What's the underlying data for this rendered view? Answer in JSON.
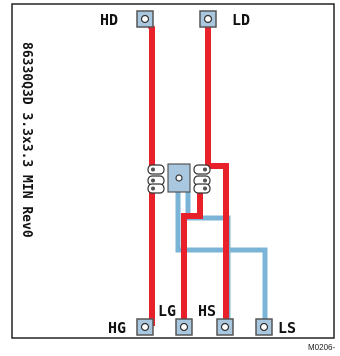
{
  "pins": {
    "hd": "HD",
    "ld": "LD",
    "hg": "HG",
    "lg": "LG",
    "hs": "HS",
    "ls": "LS"
  },
  "board_label": "86330Q3D 3.3x3.3 MIN Rev0",
  "figure_id": "M0206-",
  "colors": {
    "trace_red": "#e8202a",
    "trace_blue": "#7ab4d6",
    "pad": "#a9c8e0",
    "outline": "#222222"
  }
}
